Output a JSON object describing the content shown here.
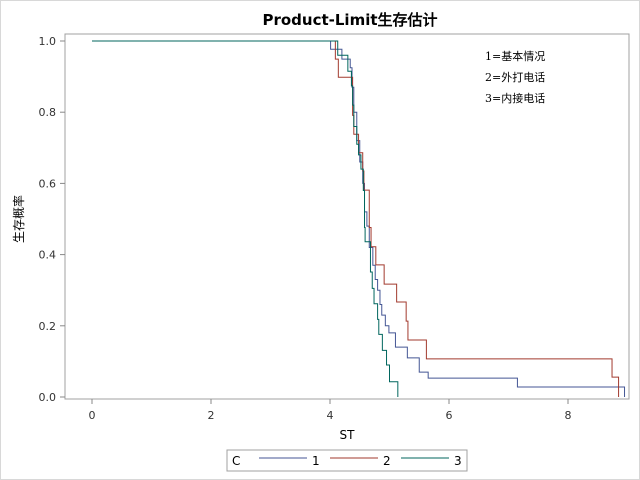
{
  "chart_data": {
    "type": "line",
    "step": true,
    "title": "Product-Limit生存估计",
    "xlabel": "ST",
    "ylabel": "生存概率",
    "xlim": [
      -0.5,
      9.0
    ],
    "ylim": [
      0,
      1.0
    ],
    "xticks": [
      "0",
      "2",
      "4",
      "6",
      "8"
    ],
    "yticks": [
      "0.0",
      "0.2",
      "0.4",
      "0.6",
      "0.8",
      "1.0"
    ],
    "legend": {
      "title": "C",
      "placement": "bottom",
      "entries": [
        "1",
        "2",
        "3"
      ]
    },
    "annotations": [
      "1=基本情况",
      "2=外打电话",
      "3=内接电话"
    ],
    "series": [
      {
        "name": "1",
        "color": "#445694",
        "x": [
          0,
          4.01,
          4.2,
          4.34,
          4.37,
          4.4,
          4.45,
          4.5,
          4.55,
          4.58,
          4.62,
          4.66,
          4.72,
          4.76,
          4.8,
          4.84,
          4.87,
          4.93,
          4.99,
          5.1,
          5.3,
          5.5,
          5.65,
          7.15,
          8.95
        ],
        "y": [
          1.0,
          0.977,
          0.949,
          0.925,
          0.87,
          0.8,
          0.72,
          0.66,
          0.6,
          0.52,
          0.48,
          0.42,
          0.37,
          0.33,
          0.3,
          0.26,
          0.23,
          0.2,
          0.18,
          0.14,
          0.11,
          0.07,
          0.053,
          0.028,
          0.0
        ]
      },
      {
        "name": "2",
        "color": "#A23A2E",
        "x": [
          0,
          4.09,
          4.14,
          4.38,
          4.4,
          4.48,
          4.55,
          4.57,
          4.66,
          4.69,
          4.77,
          4.91,
          5.12,
          5.28,
          5.31,
          5.62,
          8.74,
          8.85
        ],
        "y": [
          1.0,
          0.949,
          0.898,
          0.791,
          0.738,
          0.686,
          0.635,
          0.581,
          0.476,
          0.422,
          0.371,
          0.317,
          0.267,
          0.213,
          0.16,
          0.107,
          0.056,
          0.0
        ]
      },
      {
        "name": "3",
        "color": "#01665E",
        "x": [
          0,
          4.13,
          4.3,
          4.36,
          4.38,
          4.4,
          4.45,
          4.48,
          4.52,
          4.56,
          4.58,
          4.59,
          4.68,
          4.71,
          4.74,
          4.8,
          4.82,
          4.88,
          4.95,
          5.0,
          5.14
        ],
        "y": [
          1.0,
          0.96,
          0.915,
          0.874,
          0.82,
          0.76,
          0.71,
          0.68,
          0.64,
          0.58,
          0.476,
          0.436,
          0.351,
          0.305,
          0.262,
          0.218,
          0.176,
          0.131,
          0.09,
          0.043,
          0.0
        ]
      }
    ]
  }
}
